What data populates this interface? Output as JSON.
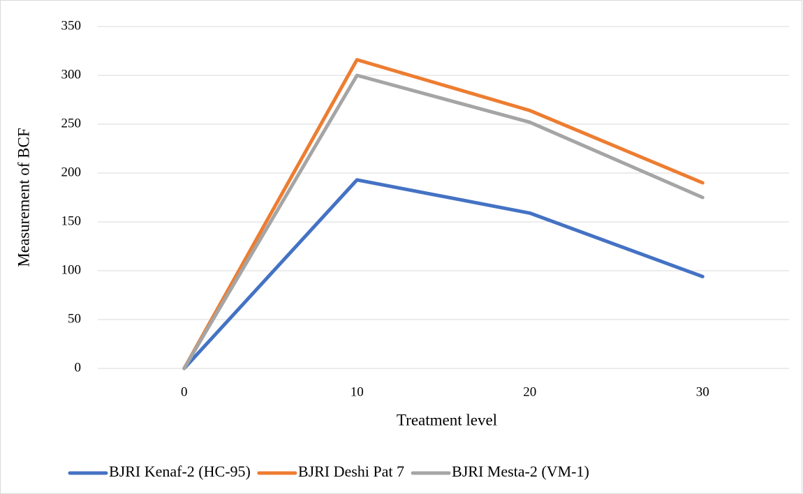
{
  "chart_data": {
    "type": "line",
    "x_label": "Treatment level",
    "y_label": "Measurement of  BCF",
    "categories": [
      "0",
      "10",
      "20",
      "30"
    ],
    "series": [
      {
        "name": "BJRI Kenaf-2 (HC-95)",
        "color": "#4472c4",
        "values": [
          0,
          193,
          159,
          94
        ]
      },
      {
        "name": "BJRI Deshi Pat 7",
        "color": "#ed7d31",
        "values": [
          0,
          316,
          264,
          190
        ]
      },
      {
        "name": "BJRI Mesta-2 (VM-1)",
        "color": "#a5a5a5",
        "values": [
          0,
          300,
          252,
          175
        ]
      }
    ],
    "ylim": [
      0,
      350
    ],
    "yticks": [
      0,
      50,
      100,
      150,
      200,
      250,
      300,
      350
    ],
    "grid": true,
    "legend": "bottom"
  }
}
